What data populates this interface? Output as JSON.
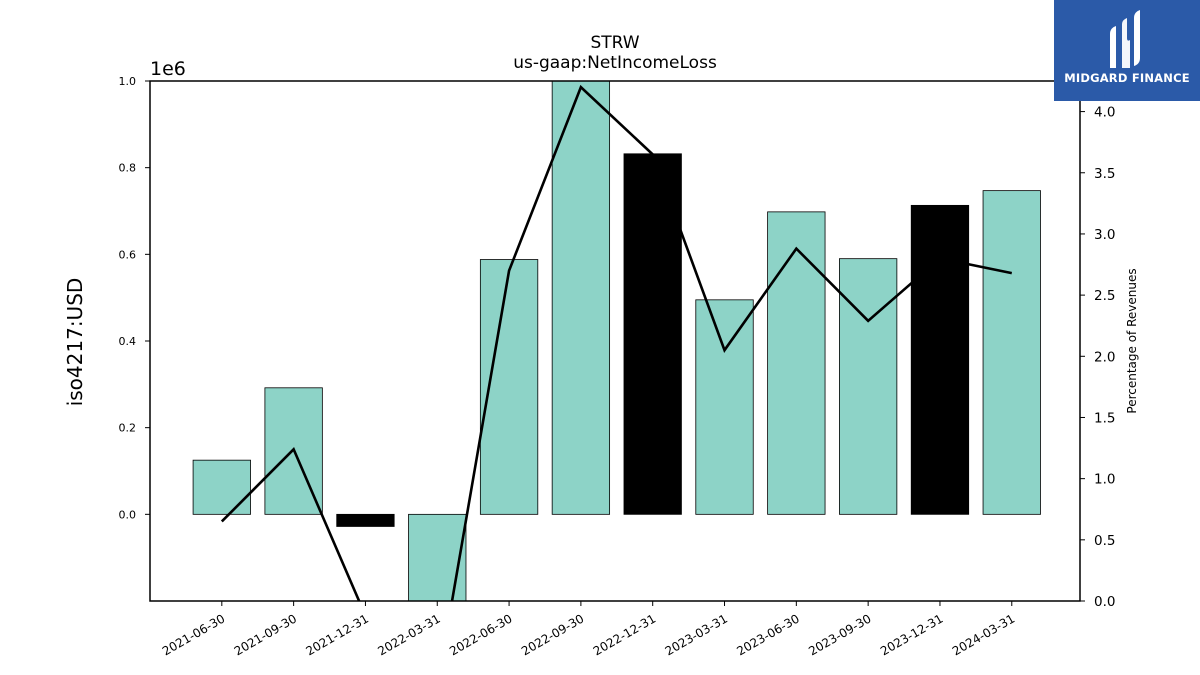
{
  "chart_data": {
    "type": "bar",
    "title": "STRW",
    "subtitle": "us-gaap:NetIncomeLoss",
    "ylabel": "iso4217:USD",
    "y_multiplier": "1e6",
    "y2label": "Percentage of Revenues",
    "categories": [
      "2021-06-30",
      "2021-09-30",
      "2021-12-31",
      "2022-03-31",
      "2022-06-30",
      "2022-09-30",
      "2022-12-31",
      "2023-03-31",
      "2023-06-30",
      "2023-09-30",
      "2023-12-31",
      "2024-03-31"
    ],
    "series": [
      {
        "values": [
          125000,
          292000,
          -28000,
          -220000,
          588000,
          1005000,
          832000,
          495000,
          698000,
          590000,
          713000,
          747000
        ],
        "bar_colors": [
          "#8dd3c7",
          "#8dd3c7",
          "#000000",
          "#8dd3c7",
          "#8dd3c7",
          "#8dd3c7",
          "#000000",
          "#8dd3c7",
          "#8dd3c7",
          "#8dd3c7",
          "#000000",
          "#8dd3c7"
        ],
        "axis": "left"
      },
      {
        "values": [
          0.65,
          1.24,
          -0.12,
          -0.7,
          2.7,
          4.2,
          3.65,
          2.05,
          2.88,
          2.29,
          2.8,
          2.68
        ],
        "color": "#000000",
        "axis": "right",
        "kind": "line"
      }
    ],
    "ylim": [
      -200000,
      1000000
    ],
    "y2lim": [
      0.0,
      4.25
    ],
    "yticks": [
      "0.0",
      "0.2",
      "0.4",
      "0.6",
      "0.8",
      "1.0"
    ],
    "y2ticks": [
      "0.0",
      "0.5",
      "1.0",
      "1.5",
      "2.0",
      "2.5",
      "3.0",
      "3.5",
      "4.0"
    ],
    "grid": false,
    "legend": "none"
  },
  "logo": {
    "text": "MIDGARD FINANCE",
    "color": "#2b5aa8"
  }
}
